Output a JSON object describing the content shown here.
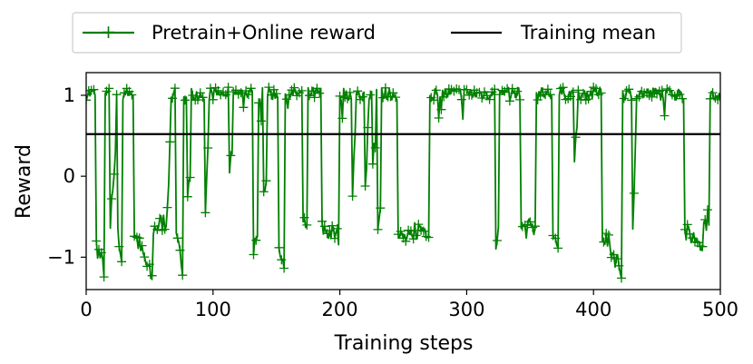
{
  "chart_data": {
    "type": "line",
    "xlabel": "Training steps",
    "ylabel": "Reward",
    "xlim": [
      0,
      500
    ],
    "ylim": [
      -1.4,
      1.28
    ],
    "xticks": [
      0,
      100,
      200,
      300,
      400,
      500
    ],
    "yticks": [
      -1,
      0,
      1
    ],
    "ytick_labels": [
      "−1",
      "0",
      "1"
    ],
    "grid": false,
    "legend_position": "top-center, above plot",
    "series": [
      {
        "name": "Pretrain+Online reward",
        "color": "#008000",
        "marker": "+",
        "segments": [
          [
            0,
            500,
            1.0,
            0.05
          ]
        ],
        "dips": [
          [
            8,
            14,
            -0.85,
            -1.15
          ],
          [
            19,
            23,
            -0.6,
            0.35
          ],
          [
            25,
            28,
            -0.75,
            -1.15
          ],
          [
            38,
            52,
            -0.7,
            -1.28
          ],
          [
            53,
            62,
            -0.65,
            -0.55
          ],
          [
            63,
            66,
            -0.6,
            0.3
          ],
          [
            71,
            76,
            -0.8,
            -1.1
          ],
          [
            80,
            82,
            -0.25,
            0.05
          ],
          [
            94,
            96,
            -0.5,
            0.35
          ],
          [
            113,
            115,
            -0.05,
            0.35
          ],
          [
            132,
            135,
            -0.85,
            -0.8
          ],
          [
            140,
            142,
            -0.1,
            -0.1
          ],
          [
            152,
            156,
            -0.8,
            -1.15
          ],
          [
            171,
            174,
            -0.65,
            -0.6
          ],
          [
            186,
            199,
            -0.65,
            -0.75
          ],
          [
            210,
            212,
            -0.3,
            0.5
          ],
          [
            220,
            222,
            -0.2,
            0.5
          ],
          [
            226,
            228,
            0.25,
            0.35
          ],
          [
            230,
            232,
            -0.75,
            -0.45
          ],
          [
            246,
            258,
            -0.75,
            -0.8
          ],
          [
            259,
            270,
            -0.65,
            -0.65
          ],
          [
            323,
            325,
            -0.85,
            -0.55
          ],
          [
            343,
            354,
            -0.65,
            -0.65
          ],
          [
            368,
            372,
            -0.7,
            -0.9
          ],
          [
            385,
            387,
            0.3,
            0.5
          ],
          [
            407,
            422,
            -0.7,
            -1.15
          ],
          [
            431,
            433,
            -0.55,
            0.35
          ],
          [
            472,
            486,
            -0.7,
            -0.8
          ],
          [
            487,
            491,
            -0.6,
            -0.5
          ]
        ]
      },
      {
        "name": "Training mean",
        "color": "#000000",
        "values": [
          {
            "x": 0,
            "y": 0.52
          },
          {
            "x": 500,
            "y": 0.52
          }
        ]
      }
    ]
  }
}
